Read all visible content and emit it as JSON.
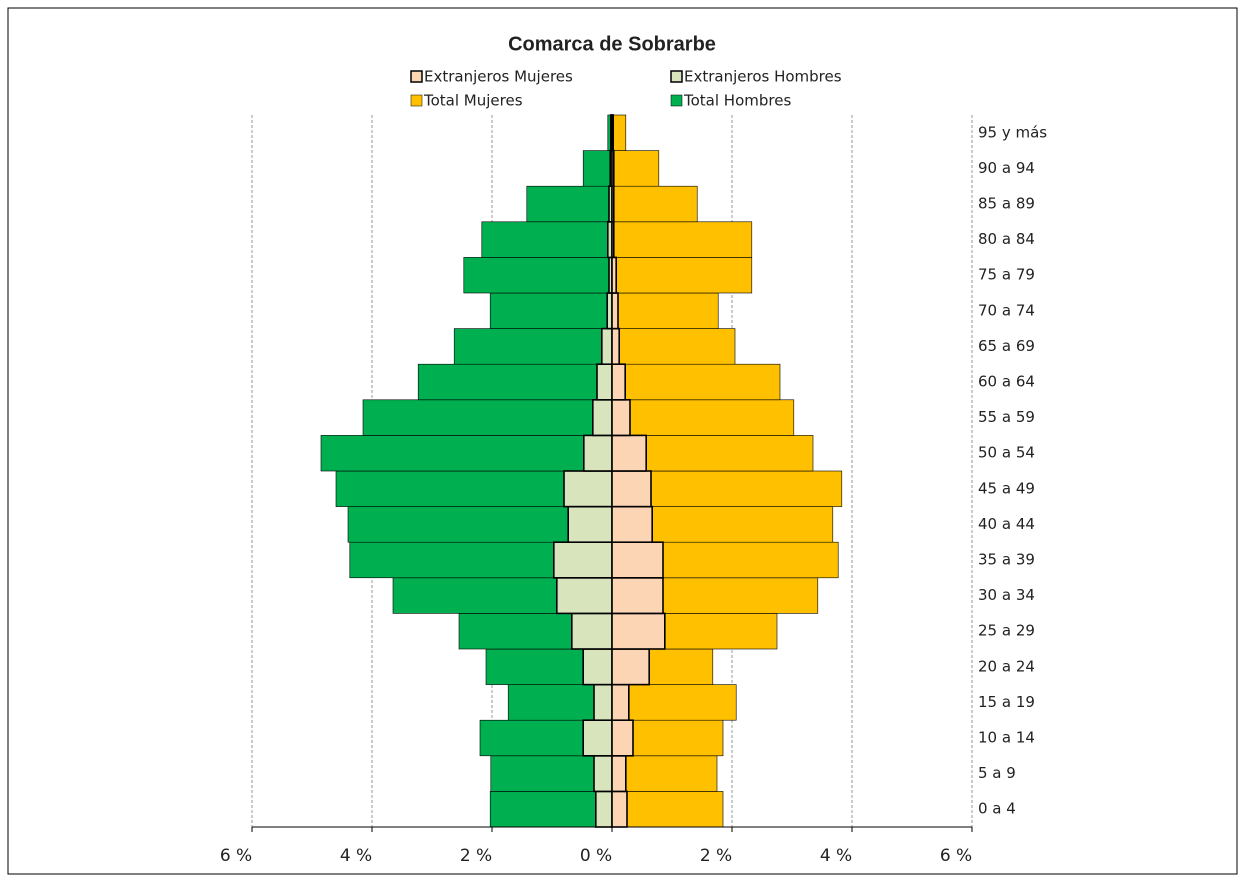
{
  "chart_data": {
    "type": "pyramid",
    "title": "Comarca de Sobrarbe",
    "categories": [
      "0 a 4",
      "5 a 9",
      "10 a 14",
      "15 a 19",
      "20 a 24",
      "25 a 29",
      "30 a 34",
      "35 a 39",
      "40 a 44",
      "45 a 49",
      "50 a 54",
      "55 a 59",
      "60 a 64",
      "65 a 69",
      "70 a 74",
      "75 a 79",
      "80 a 84",
      "85 a 89",
      "90 a 94",
      "95 y más"
    ],
    "series": [
      {
        "name": "Extranjeros Mujeres",
        "color": "#fcd5b4",
        "values": [
          0.25,
          0.23,
          0.35,
          0.28,
          0.62,
          0.88,
          0.85,
          0.85,
          0.67,
          0.65,
          0.57,
          0.3,
          0.22,
          0.12,
          0.1,
          0.07,
          0.03,
          0.03,
          0.03,
          0.02
        ]
      },
      {
        "name": "Extranjeros Hombres",
        "color": "#d8e4bc",
        "values": [
          -0.27,
          -0.3,
          -0.48,
          -0.3,
          -0.48,
          -0.67,
          -0.92,
          -0.97,
          -0.73,
          -0.8,
          -0.47,
          -0.32,
          -0.25,
          -0.17,
          -0.08,
          -0.05,
          -0.07,
          -0.05,
          -0.03,
          -0.02
        ]
      },
      {
        "name": "Total Mujeres",
        "color": "#ffc000",
        "values": [
          1.85,
          1.75,
          1.85,
          2.07,
          1.68,
          2.75,
          3.43,
          3.77,
          3.68,
          3.83,
          3.35,
          3.03,
          2.8,
          2.05,
          1.77,
          2.33,
          2.33,
          1.42,
          0.78,
          0.23
        ]
      },
      {
        "name": "Total Hombres",
        "color": "#00b050",
        "values": [
          -2.03,
          -2.02,
          -2.2,
          -1.73,
          -2.1,
          -2.55,
          -3.65,
          -4.37,
          -4.4,
          -4.6,
          -4.85,
          -4.15,
          -3.23,
          -2.63,
          -2.03,
          -2.47,
          -2.17,
          -1.42,
          -0.48,
          -0.07
        ]
      }
    ],
    "xlim": [
      -6,
      6
    ],
    "xticks": [
      {
        "value": -6,
        "label": "6 %"
      },
      {
        "value": -4,
        "label": "4 %"
      },
      {
        "value": -2,
        "label": "2 %"
      },
      {
        "value": 0,
        "label": "0 %"
      },
      {
        "value": 2,
        "label": "2 %"
      },
      {
        "value": 4,
        "label": "4 %"
      },
      {
        "value": 6,
        "label": "6 %"
      }
    ],
    "grid": true
  }
}
